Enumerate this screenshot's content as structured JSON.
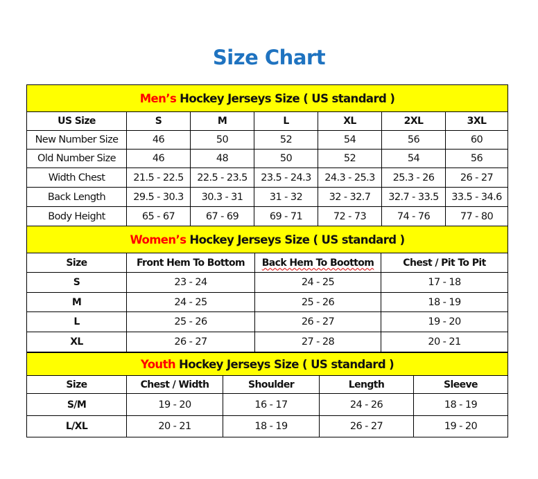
{
  "title": "Size Chart",
  "colors": {
    "title": "#1f73c0",
    "banner": "#ffff00",
    "highlight": "#ff0000"
  },
  "sections": [
    {
      "id": "men",
      "banner_highlight": "Men’s",
      "banner_text": "Hockey Jerseys Size ( US standard )",
      "header": [
        "US Size",
        "S",
        "M",
        "L",
        "XL",
        "2XL",
        "3XL"
      ],
      "rows": [
        [
          "New Number Size",
          "46",
          "50",
          "52",
          "54",
          "56",
          "60"
        ],
        [
          "Old Number Size",
          "46",
          "48",
          "50",
          "52",
          "54",
          "56"
        ],
        [
          "Width Chest",
          "21.5 - 22.5",
          "22.5 - 23.5",
          "23.5 - 24.3",
          "24.3 - 25.3",
          "25.3 - 26",
          "26 - 27"
        ],
        [
          "Back Length",
          "29.5 - 30.3",
          "30.3 - 31",
          "31 - 32",
          "32 - 32.7",
          "32.7 - 33.5",
          "33.5 - 34.6"
        ],
        [
          "Body Height",
          "65 - 67",
          "67 - 69",
          "69 - 71",
          "72 - 73",
          "74 - 76",
          "77 - 80"
        ]
      ]
    },
    {
      "id": "women",
      "banner_highlight": "Women’s",
      "banner_text": "Hockey Jerseys Size ( US standard )",
      "header": [
        "Size",
        "Front Hem To Bottom",
        "Back Hem To Boottom",
        "Chest / Pit To Pit"
      ],
      "rows": [
        [
          "S",
          "23 - 24",
          "24 - 25",
          "17 - 18"
        ],
        [
          "M",
          "24 - 25",
          "25 - 26",
          "18 - 19"
        ],
        [
          "L",
          "25 - 26",
          "26 - 27",
          "19 - 20"
        ],
        [
          "XL",
          "26 - 27",
          "27 - 28",
          "20 - 21"
        ]
      ]
    },
    {
      "id": "youth",
      "banner_highlight": "Youth",
      "banner_text": "Hockey Jerseys Size ( US standard )",
      "header": [
        "Size",
        "Chest / Width",
        "Shoulder",
        "Length",
        "Sleeve"
      ],
      "rows": [
        [
          "S/M",
          "19 - 20",
          "16 - 17",
          "24 - 26",
          "18 - 19"
        ],
        [
          "L/XL",
          "20 - 21",
          "18 - 19",
          "26 - 27",
          "19 - 20"
        ]
      ]
    }
  ]
}
